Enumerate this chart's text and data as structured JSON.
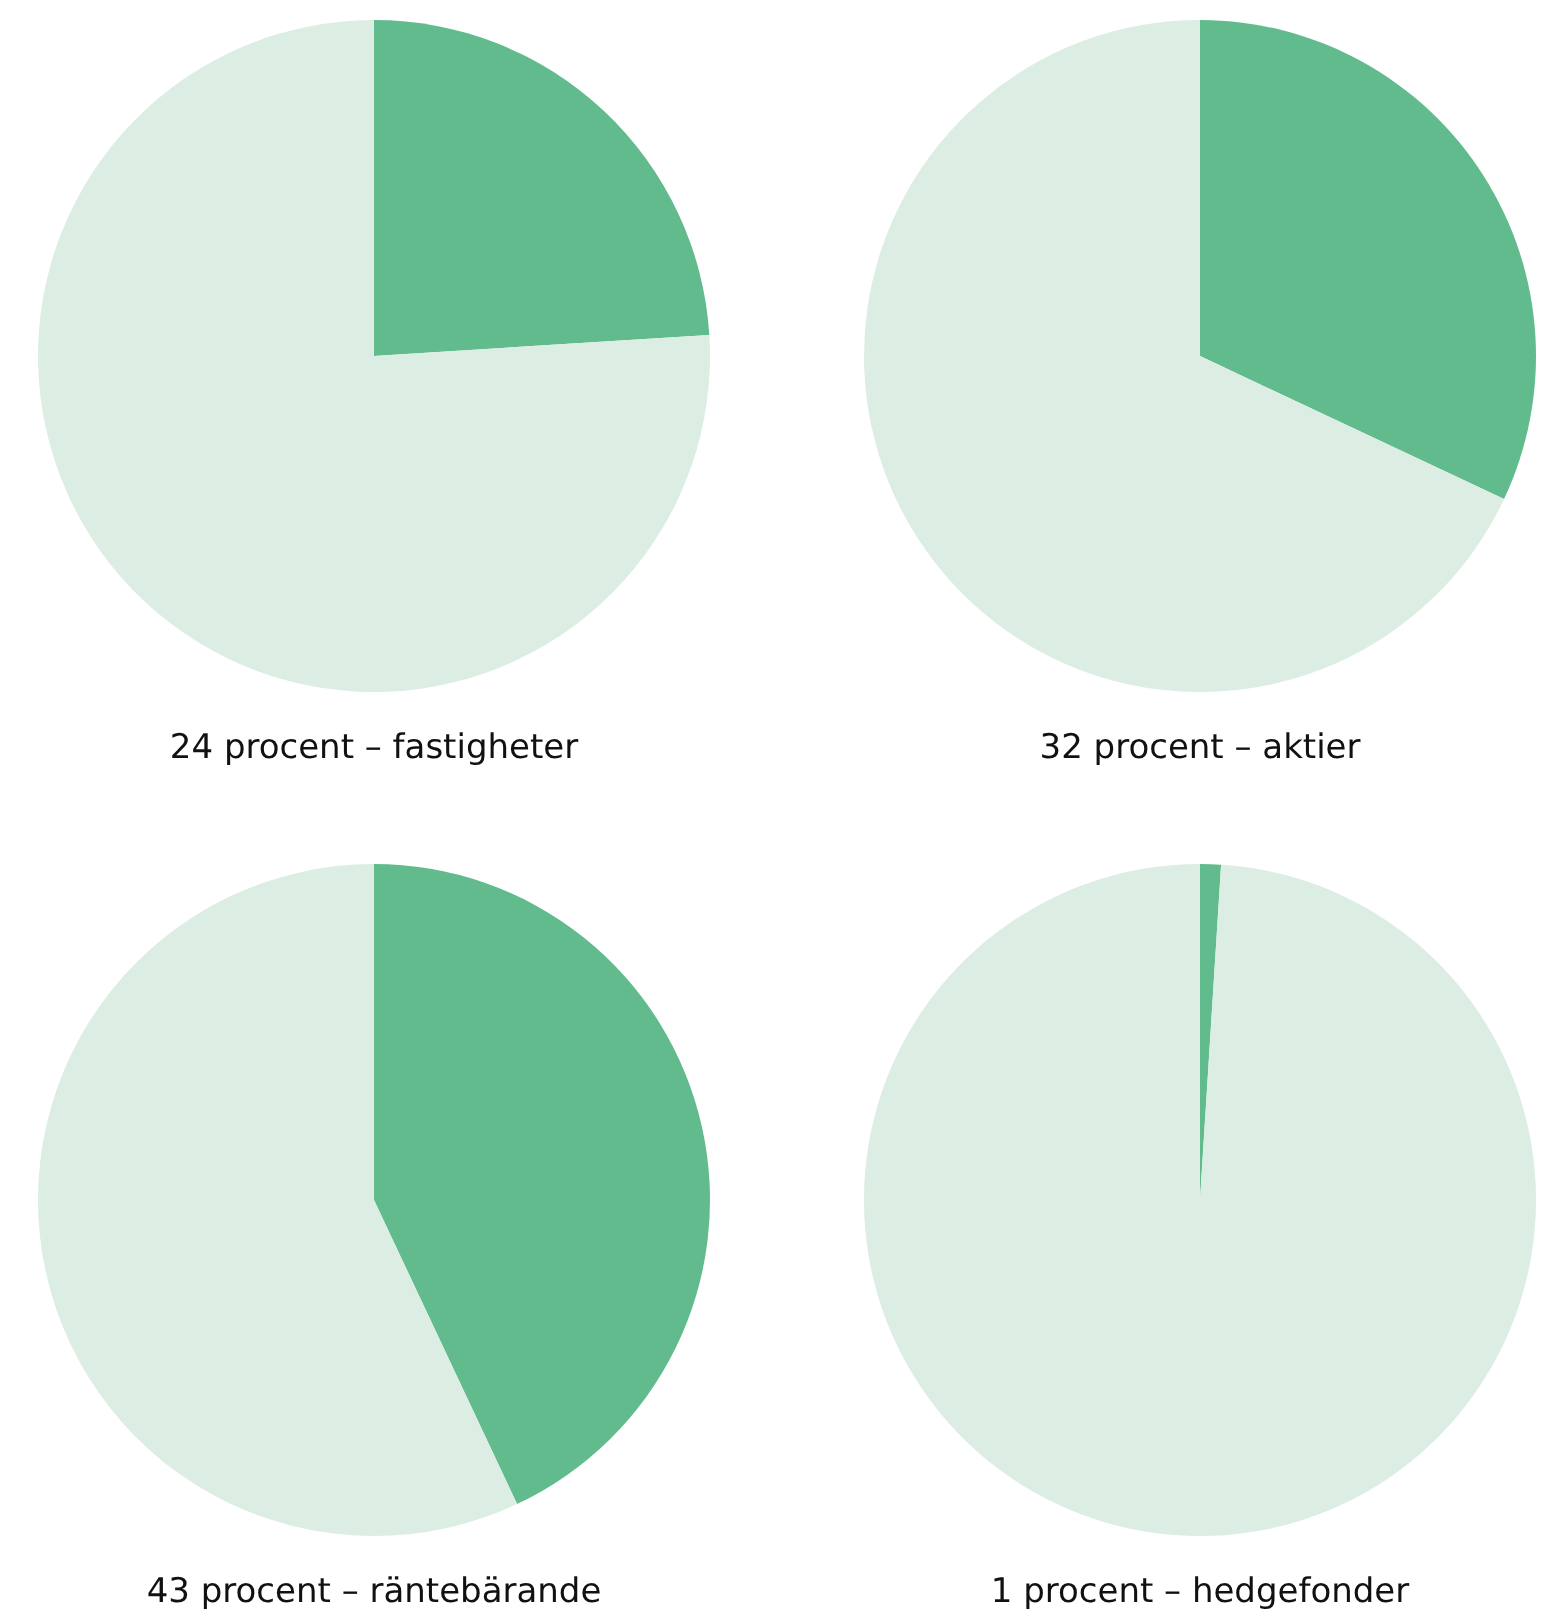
{
  "chart_data": [
    {
      "type": "pie",
      "title": "24 procent – fastigheter",
      "categories": [
        null,
        null
      ],
      "values": [
        24,
        76
      ],
      "colors": [
        "#62bb8d",
        "#dcede3"
      ]
    },
    {
      "type": "pie",
      "title": "32 procent – aktier",
      "categories": [
        null,
        null
      ],
      "values": [
        32,
        68
      ],
      "colors": [
        "#62bb8d",
        "#dcede3"
      ]
    },
    {
      "type": "pie",
      "title": "43 procent – räntebärande",
      "categories": [
        null,
        null
      ],
      "values": [
        43,
        57
      ],
      "colors": [
        "#62bb8d",
        "#dcede3"
      ]
    },
    {
      "type": "pie",
      "title": "1 procent – hedgefonder",
      "categories": [
        null,
        null
      ],
      "values": [
        1,
        99
      ],
      "colors": [
        "#62bb8d",
        "#dcede3"
      ]
    }
  ]
}
